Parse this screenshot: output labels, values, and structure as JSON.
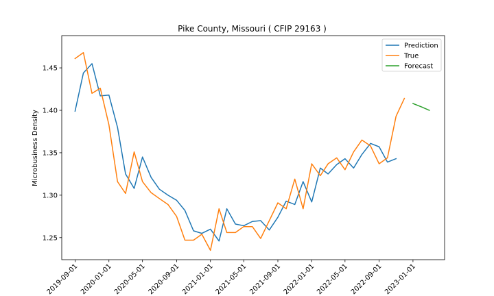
{
  "chart_data": {
    "type": "line",
    "title": "Pike County, Missouri ( CFIP 29163 )",
    "xlabel": "",
    "ylabel": "Microbusiness Density",
    "xlim": [
      "2019-07-15",
      "2023-04-25"
    ],
    "ylim": [
      1.224,
      1.488
    ],
    "x_ticks": [
      "2019-09-01",
      "2020-01-01",
      "2020-05-01",
      "2020-09-01",
      "2021-01-01",
      "2021-05-01",
      "2021-09-01",
      "2022-01-01",
      "2022-05-01",
      "2022-09-01",
      "2023-01-01"
    ],
    "y_ticks": [
      1.25,
      1.3,
      1.35,
      1.4,
      1.45
    ],
    "y_tick_labels": [
      "1.25",
      "1.30",
      "1.35",
      "1.40",
      "1.45"
    ],
    "legend_position": "top-right",
    "grid": false,
    "series": [
      {
        "name": "Prediction",
        "color": "#1f77b4",
        "x": [
          "2019-09-01",
          "2019-10-01",
          "2019-11-01",
          "2019-12-01",
          "2020-01-01",
          "2020-02-01",
          "2020-03-01",
          "2020-04-01",
          "2020-05-01",
          "2020-06-01",
          "2020-07-01",
          "2020-08-01",
          "2020-09-01",
          "2020-10-01",
          "2020-11-01",
          "2020-12-01",
          "2021-01-01",
          "2021-02-01",
          "2021-03-01",
          "2021-04-01",
          "2021-05-01",
          "2021-06-01",
          "2021-07-01",
          "2021-08-01",
          "2021-09-01",
          "2021-10-01",
          "2021-11-01",
          "2021-12-01",
          "2022-01-01",
          "2022-02-01",
          "2022-03-01",
          "2022-04-01",
          "2022-05-01",
          "2022-06-01",
          "2022-07-01",
          "2022-08-01",
          "2022-09-01",
          "2022-10-01",
          "2022-11-01"
        ],
        "values": [
          1.399,
          1.444,
          1.455,
          1.417,
          1.418,
          1.38,
          1.325,
          1.308,
          1.345,
          1.321,
          1.307,
          1.3,
          1.294,
          1.282,
          1.258,
          1.255,
          1.26,
          1.246,
          1.284,
          1.266,
          1.264,
          1.269,
          1.27,
          1.259,
          1.274,
          1.293,
          1.289,
          1.316,
          1.292,
          1.332,
          1.325,
          1.336,
          1.343,
          1.332,
          1.348,
          1.361,
          1.357,
          1.339,
          1.343
        ]
      },
      {
        "name": "True",
        "color": "#ff7f0e",
        "x": [
          "2019-09-01",
          "2019-10-01",
          "2019-11-01",
          "2019-12-01",
          "2020-01-01",
          "2020-02-01",
          "2020-03-01",
          "2020-04-01",
          "2020-05-01",
          "2020-06-01",
          "2020-07-01",
          "2020-08-01",
          "2020-09-01",
          "2020-10-01",
          "2020-11-01",
          "2020-12-01",
          "2021-01-01",
          "2021-02-01",
          "2021-03-01",
          "2021-04-01",
          "2021-05-01",
          "2021-06-01",
          "2021-07-01",
          "2021-08-01",
          "2021-09-01",
          "2021-10-01",
          "2021-11-01",
          "2021-12-01",
          "2022-01-01",
          "2022-02-01",
          "2022-03-01",
          "2022-04-01",
          "2022-05-01",
          "2022-06-01",
          "2022-07-01",
          "2022-08-01",
          "2022-09-01",
          "2022-10-01",
          "2022-11-01",
          "2022-12-01"
        ],
        "values": [
          1.461,
          1.468,
          1.42,
          1.426,
          1.383,
          1.316,
          1.302,
          1.351,
          1.316,
          1.303,
          1.296,
          1.289,
          1.275,
          1.247,
          1.247,
          1.254,
          1.235,
          1.284,
          1.256,
          1.256,
          1.263,
          1.263,
          1.249,
          1.27,
          1.291,
          1.284,
          1.319,
          1.284,
          1.337,
          1.323,
          1.337,
          1.344,
          1.33,
          1.351,
          1.365,
          1.358,
          1.337,
          1.344,
          1.393,
          1.414
        ]
      },
      {
        "name": "Forecast",
        "color": "#2ca02c",
        "x": [
          "2023-01-01",
          "2023-02-01",
          "2023-03-01"
        ],
        "values": [
          1.408,
          1.404,
          1.4
        ]
      }
    ]
  }
}
